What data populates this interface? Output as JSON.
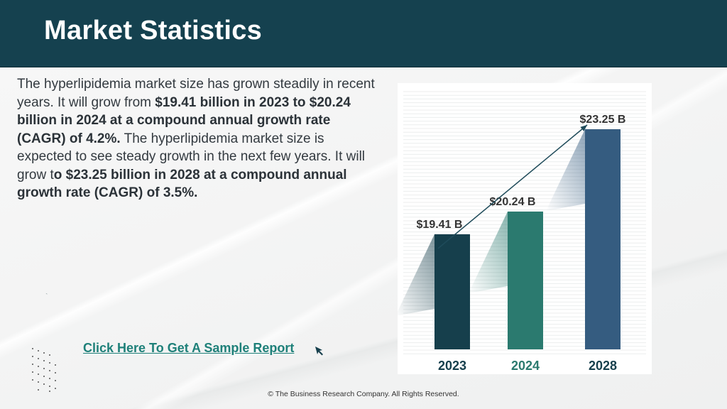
{
  "header": {
    "title": "Market Statistics"
  },
  "paragraph": {
    "p1": "The hyperlipidemia market size has grown steadily in recent years. It will grow from ",
    "b1": "$19.41 billion in 2023 to $20.24 billion in 2024 at a compound annual growth rate (CAGR) of 4.2%.",
    "p2": " The hyperlipidemia market size is expected to see steady growth in the next few years. It will grow t",
    "b2": "o $23.25 billion in 2028 at a compound annual growth rate (CAGR) of 3.5%."
  },
  "cta": {
    "label": "Click Here To Get A Sample Report"
  },
  "footer": {
    "text": "© The Business Research Company. All Rights Reserved."
  },
  "colors": {
    "header_bg": "#15414f",
    "bar_2023": "#163f4c",
    "bar_2024": "#2b7a6f",
    "bar_2028": "#355c80",
    "cta_link": "#1e8079"
  },
  "chart_data": {
    "type": "bar",
    "categories": [
      "2023",
      "2024",
      "2028"
    ],
    "values": [
      19.41,
      20.24,
      23.25
    ],
    "data_labels": [
      "$19.41 B",
      "$20.24 B",
      "$23.25  B"
    ],
    "category_colors": [
      "#163f4c",
      "#2b7a6f",
      "#163f4c"
    ],
    "bar_colors": [
      "#163f4c",
      "#2b7a6f",
      "#355c80"
    ],
    "grid": true,
    "trend_arrow": true
  }
}
